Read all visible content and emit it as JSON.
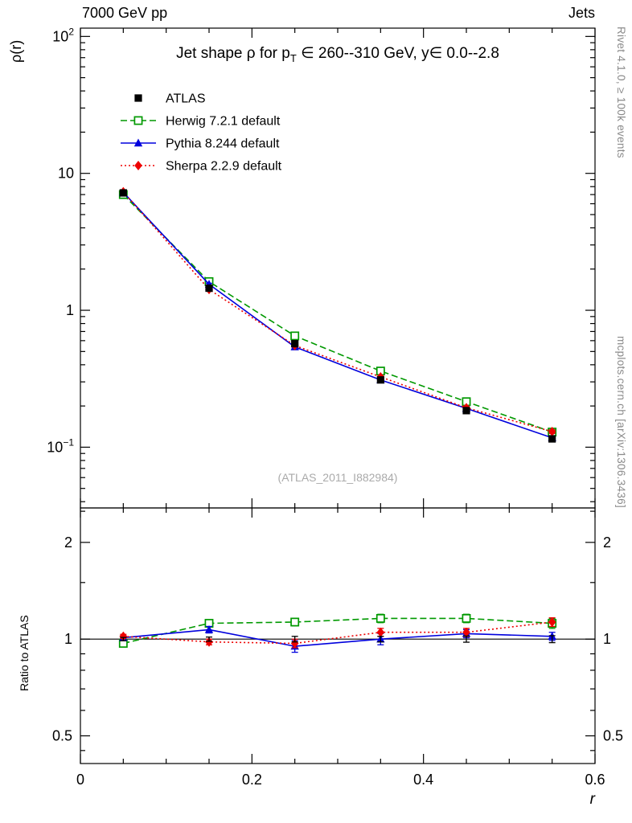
{
  "header": {
    "left": "7000 GeV pp",
    "right": "Jets"
  },
  "side_notes": {
    "top_right": "Rivet 4.1.0, ≥ 100k events",
    "bottom_right": "mcplots.cern.ch [arXiv:1306.3436]"
  },
  "watermark": "(ATLAS_2011_I882984)",
  "chart_data": {
    "type": "line",
    "title": {
      "pre": "Jet shape ρ for p",
      "sub": "T",
      "post": " ∈ 260--310 GeV, y∈ 0.0--2.8"
    },
    "xlabel": "r",
    "ylabel": "ρ(r)",
    "ratio_ylabel": "Ratio to ATLAS",
    "legend_position": "top-left",
    "x": [
      0.05,
      0.15,
      0.25,
      0.35,
      0.45,
      0.55
    ],
    "xlim": [
      0,
      0.6
    ],
    "x_major_ticks": [
      {
        "v": 0,
        "label": "0"
      },
      {
        "v": 0.2,
        "label": "0.2"
      },
      {
        "v": 0.4,
        "label": "0.4"
      },
      {
        "v": 0.6,
        "label": "0.6"
      }
    ],
    "x_minor_step": 0.05,
    "main_panel": {
      "yscale": "log",
      "ylim": [
        0.036,
        115
      ],
      "y_major_ticks": [
        {
          "v": 100,
          "base": "10",
          "exp": "2"
        },
        {
          "v": 10,
          "base": "10"
        },
        {
          "v": 1,
          "base": "1"
        },
        {
          "v": 0.1,
          "base": "10",
          "exp": "−1"
        }
      ]
    },
    "ratio_panel": {
      "yscale": "log",
      "ylim": [
        0.41,
        2.56
      ],
      "refline": 1,
      "y_major_ticks": [
        {
          "v": 2,
          "label": "2"
        },
        {
          "v": 1,
          "label": "1"
        },
        {
          "v": 0.5,
          "label": "0.5"
        }
      ],
      "y_minor_ticks": [
        0.45,
        0.6,
        0.7,
        0.8,
        0.9,
        1.5,
        2.5
      ]
    },
    "series": [
      {
        "name": "ATLAS",
        "color": "#000000",
        "line": "none",
        "marker": "square-filled",
        "ratio_line": "none",
        "ratio_marker": "none",
        "values": [
          7.2,
          1.45,
          0.57,
          0.31,
          0.185,
          0.115
        ],
        "yerr": [
          0.18,
          0.045,
          0.018,
          0.011,
          0.007,
          0.005
        ],
        "ratio": [
          1,
          1,
          1,
          1,
          1,
          1
        ],
        "ratio_err": [
          0.012,
          0.015,
          0.02,
          0.02,
          0.022,
          0.025
        ]
      },
      {
        "name": "Herwig 7.2.1 default",
        "color": "#009900",
        "line": "dashed",
        "marker": "square-open",
        "values": [
          7.0,
          1.62,
          0.65,
          0.36,
          0.215,
          0.129
        ],
        "yerr": [
          0.08,
          0.025,
          0.012,
          0.008,
          0.006,
          0.004
        ],
        "ratio": [
          0.97,
          1.12,
          1.13,
          1.16,
          1.16,
          1.12
        ],
        "ratio_err": [
          0.02,
          0.025,
          0.03,
          0.035,
          0.035,
          0.04
        ]
      },
      {
        "name": "Pythia 8.244 default",
        "color": "#0000dd",
        "line": "solid",
        "marker": "triangle-filled",
        "values": [
          7.27,
          1.55,
          0.54,
          0.31,
          0.192,
          0.117
        ],
        "yerr": [
          0.08,
          0.025,
          0.012,
          0.008,
          0.006,
          0.004
        ],
        "ratio": [
          1.01,
          1.07,
          0.95,
          1.0,
          1.04,
          1.02
        ],
        "ratio_err": [
          0.015,
          0.025,
          0.04,
          0.04,
          0.03,
          0.03
        ]
      },
      {
        "name": "Sherpa 2.2.9 default",
        "color": "#ee0000",
        "line": "dotted",
        "marker": "diamond-filled",
        "values": [
          7.34,
          1.42,
          0.553,
          0.326,
          0.194,
          0.13
        ],
        "yerr": [
          0.08,
          0.025,
          0.012,
          0.008,
          0.006,
          0.004
        ],
        "ratio": [
          1.02,
          0.98,
          0.97,
          1.05,
          1.05,
          1.13
        ],
        "ratio_err": [
          0.015,
          0.02,
          0.03,
          0.03,
          0.03,
          0.035
        ]
      }
    ]
  }
}
